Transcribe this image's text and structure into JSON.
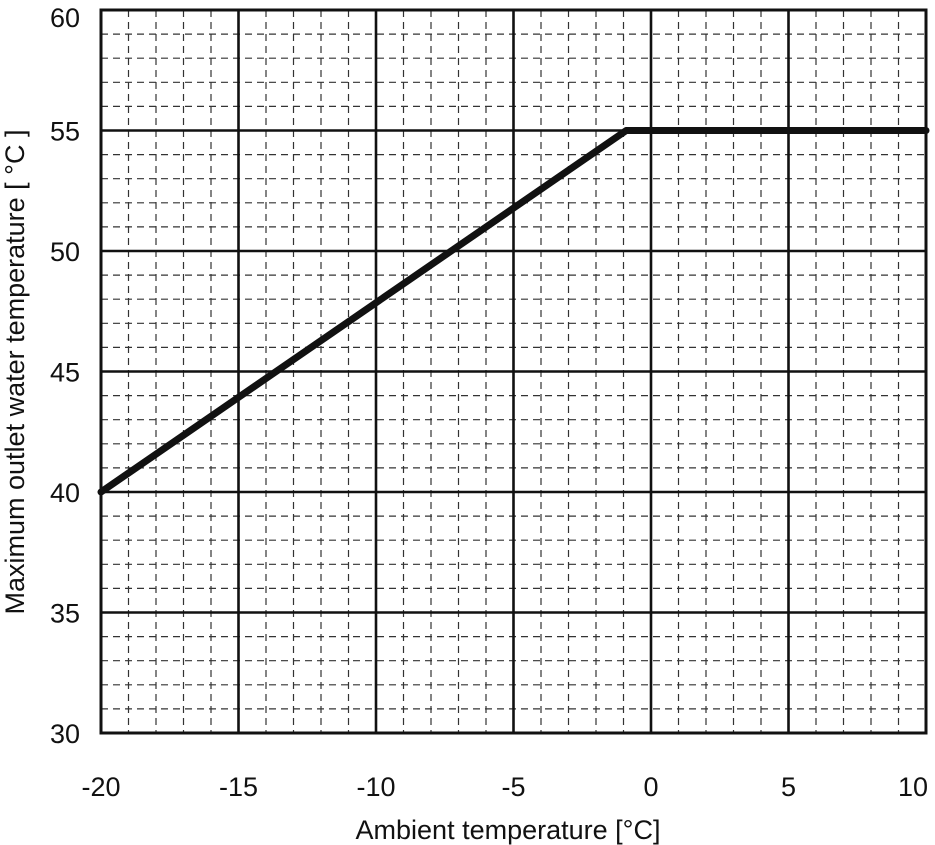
{
  "chart_data": {
    "type": "line",
    "title": "",
    "xlabel": "Ambient temperature [°C]",
    "ylabel": "Maximum outlet water temperature [ °C ]",
    "xlim": [
      -20,
      10
    ],
    "ylim": [
      30,
      60
    ],
    "x_ticks": [
      -20,
      -15,
      -10,
      -5,
      0,
      5,
      10
    ],
    "y_ticks": [
      30,
      35,
      40,
      45,
      50,
      55,
      60
    ],
    "x_minor_step": 1,
    "y_minor_step": 1,
    "grid": true,
    "legend": "none",
    "series": [
      {
        "x": [
          -20,
          -0.9,
          10
        ],
        "y": [
          40,
          55,
          55
        ],
        "color": "#111111"
      }
    ]
  }
}
